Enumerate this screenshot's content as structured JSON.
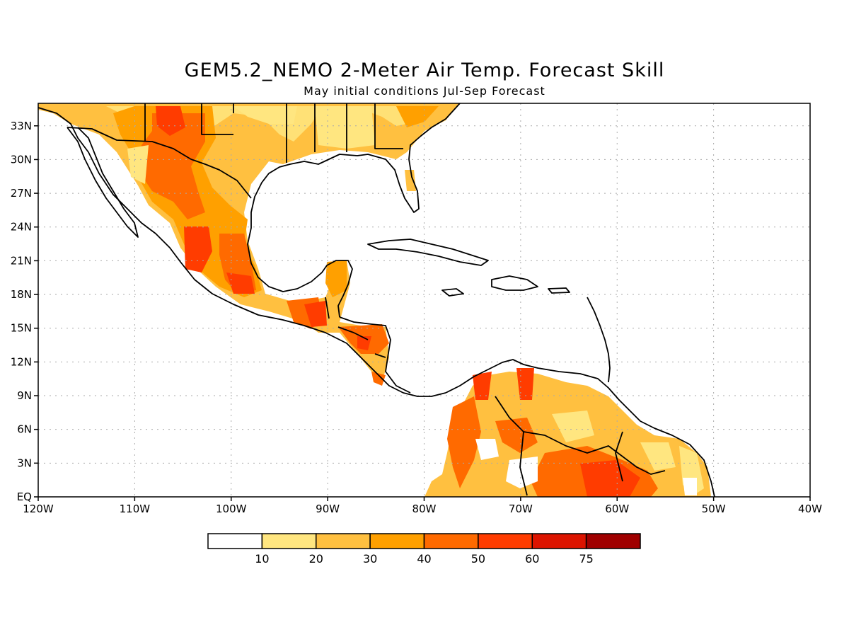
{
  "title": "GEM5.2_NEMO 2-Meter Air Temp. Forecast Skill",
  "subtitle": "May initial conditions  Jul-Sep Forecast",
  "map": {
    "lon_range": [
      -120,
      -40
    ],
    "lat_range": [
      0,
      35
    ],
    "lon_ticks": [
      -120,
      -110,
      -100,
      -90,
      -80,
      -70,
      -60,
      -50,
      -40
    ],
    "lon_labels": [
      "120W",
      "110W",
      "100W",
      "90W",
      "80W",
      "70W",
      "60W",
      "50W",
      "40W"
    ],
    "lat_ticks": [
      0,
      3,
      6,
      9,
      12,
      15,
      18,
      21,
      24,
      27,
      30,
      33
    ],
    "lat_labels": [
      "EQ",
      "3N",
      "6N",
      "9N",
      "12N",
      "15N",
      "18N",
      "21N",
      "24N",
      "27N",
      "30N",
      "33N"
    ],
    "grid": true
  },
  "colorbar": {
    "labels": [
      "10",
      "20",
      "30",
      "40",
      "50",
      "60",
      "75"
    ],
    "colors": [
      "#ffffff",
      "#ffe680",
      "#ffc040",
      "#ffa000",
      "#ff6a00",
      "#ff3c00",
      "#dc1400",
      "#a00000"
    ]
  }
}
